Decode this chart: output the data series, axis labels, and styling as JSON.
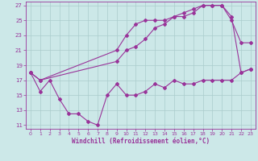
{
  "xlabel": "Windchill (Refroidissement éolien,°C)",
  "background_color": "#cce8e8",
  "line_color": "#993399",
  "grid_color": "#aacccc",
  "xlim": [
    -0.5,
    23.5
  ],
  "ylim": [
    10.5,
    27.5
  ],
  "xticks": [
    0,
    1,
    2,
    3,
    4,
    5,
    6,
    7,
    8,
    9,
    10,
    11,
    12,
    13,
    14,
    15,
    16,
    17,
    18,
    19,
    20,
    21,
    22,
    23
  ],
  "yticks": [
    11,
    13,
    15,
    17,
    19,
    21,
    23,
    25,
    27
  ],
  "line1_x": [
    0,
    1,
    2,
    3,
    4,
    5,
    6,
    7,
    8,
    9,
    10,
    11,
    12,
    13,
    14,
    15,
    16,
    17,
    18,
    19,
    20,
    21,
    22,
    23
  ],
  "line1_y": [
    18,
    15.5,
    17,
    14.5,
    12.5,
    12.5,
    11.5,
    11,
    15,
    16.5,
    15,
    15,
    15.5,
    16.5,
    16,
    17,
    16.5,
    16.5,
    17,
    17,
    17,
    17,
    18,
    18.5
  ],
  "line2_x": [
    0,
    1,
    9,
    10,
    11,
    12,
    13,
    14,
    15,
    16,
    17,
    18,
    19,
    20,
    21,
    22,
    23
  ],
  "line2_y": [
    18,
    17,
    21,
    23,
    24.5,
    25,
    25,
    25,
    25.5,
    25.5,
    26,
    27,
    27,
    27,
    25.5,
    18,
    18.5
  ],
  "line3_x": [
    0,
    1,
    9,
    10,
    11,
    12,
    13,
    14,
    15,
    16,
    17,
    18,
    19,
    20,
    21,
    22,
    23
  ],
  "line3_y": [
    18,
    17,
    19.5,
    21,
    21.5,
    22.5,
    24,
    24.5,
    25.5,
    26,
    26.5,
    27,
    27,
    27,
    25,
    22,
    22
  ]
}
